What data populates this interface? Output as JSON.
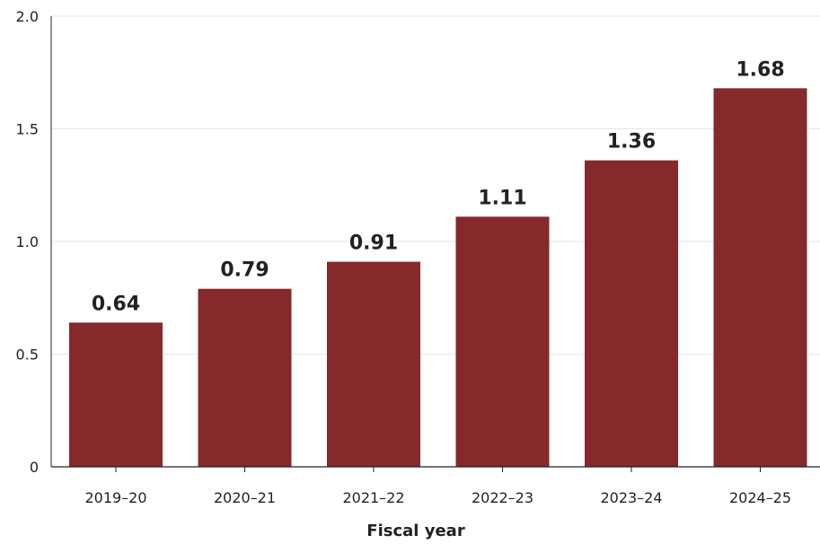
{
  "chart_data": {
    "type": "bar",
    "categories": [
      "2019–20",
      "2020–21",
      "2021–22",
      "2022–23",
      "2023–24",
      "2024–25"
    ],
    "values": [
      0.64,
      0.79,
      0.91,
      1.11,
      1.36,
      1.68
    ],
    "data_labels": [
      "0.64",
      "0.79",
      "0.91",
      "1.11",
      "1.36",
      "1.68"
    ],
    "xlabel": "Fiscal year",
    "ylabel": "",
    "ylim": [
      0,
      2.0
    ],
    "yticks": [
      0,
      0.5,
      1.0,
      1.5,
      2.0
    ],
    "ytick_labels": [
      "0",
      "0.5",
      "1.0",
      "1.5",
      "2.0"
    ],
    "grid": true,
    "bar_color": "#85292a",
    "grid_color": "#e6e6e6",
    "axis_color": "#222222"
  }
}
